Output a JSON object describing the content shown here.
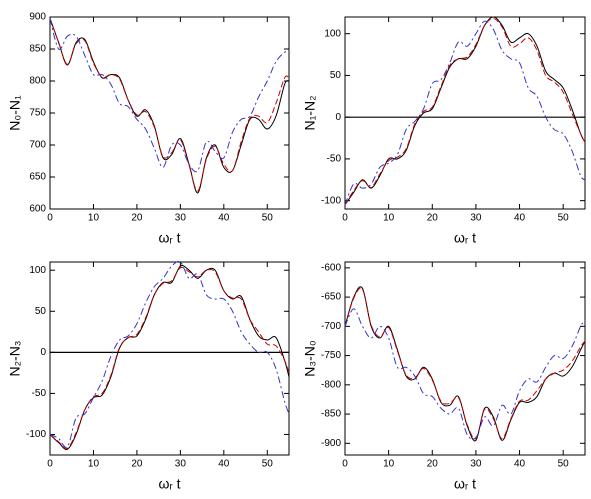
{
  "chart_data": [
    {
      "type": "line",
      "xlabel": "ωᵣ t",
      "ylabel": "N₀-N₁",
      "x": [
        0,
        2,
        4,
        6,
        8,
        10,
        12,
        14,
        16,
        18,
        20,
        22,
        24,
        26,
        28,
        30,
        32,
        34,
        36,
        38,
        40,
        42,
        44,
        46,
        48,
        50,
        52,
        54,
        55
      ],
      "xlim": [
        0,
        55
      ],
      "xticks": [
        0,
        10,
        20,
        30,
        40,
        50
      ],
      "ylim": [
        600,
        900
      ],
      "yticks": [
        600,
        650,
        700,
        750,
        800,
        850,
        900
      ],
      "series": [
        {
          "color": "#000000",
          "dash": "solid",
          "values": [
            898,
            860,
            825,
            860,
            865,
            830,
            805,
            810,
            805,
            770,
            745,
            755,
            730,
            680,
            685,
            710,
            670,
            625,
            680,
            700,
            665,
            660,
            700,
            740,
            740,
            725,
            745,
            795,
            800
          ]
        },
        {
          "color": "#cc0000",
          "dash": "dashed",
          "values": [
            898,
            860,
            826,
            858,
            863,
            828,
            806,
            810,
            803,
            770,
            747,
            752,
            728,
            682,
            688,
            708,
            668,
            628,
            678,
            698,
            670,
            660,
            705,
            742,
            745,
            735,
            765,
            805,
            805
          ]
        },
        {
          "color": "#3333cc",
          "dash": "dashdot",
          "values": [
            898,
            850,
            870,
            870,
            840,
            810,
            810,
            795,
            765,
            760,
            740,
            725,
            695,
            665,
            700,
            700,
            670,
            660,
            705,
            690,
            680,
            720,
            740,
            745,
            775,
            800,
            830,
            845,
            845
          ]
        }
      ]
    },
    {
      "type": "line",
      "xlabel": "ωᵣ t",
      "ylabel": "N₁-N₂",
      "hline": 0,
      "x": [
        0,
        2,
        4,
        6,
        8,
        10,
        12,
        14,
        16,
        18,
        20,
        22,
        24,
        26,
        28,
        30,
        32,
        34,
        36,
        38,
        40,
        42,
        44,
        46,
        48,
        50,
        52,
        54,
        55
      ],
      "xlim": [
        0,
        55
      ],
      "xticks": [
        0,
        10,
        20,
        30,
        40,
        50
      ],
      "ylim": [
        -110,
        120
      ],
      "yticks": [
        -100,
        -50,
        0,
        50,
        100
      ],
      "series": [
        {
          "color": "#000000",
          "dash": "solid",
          "values": [
            -105,
            -90,
            -75,
            -85,
            -70,
            -50,
            -50,
            -40,
            -10,
            5,
            10,
            35,
            60,
            70,
            70,
            85,
            110,
            120,
            110,
            90,
            95,
            100,
            85,
            55,
            45,
            35,
            10,
            -20,
            -30
          ]
        },
        {
          "color": "#cc0000",
          "dash": "dashed",
          "values": [
            -105,
            -88,
            -76,
            -84,
            -68,
            -52,
            -48,
            -38,
            -8,
            7,
            12,
            37,
            62,
            70,
            72,
            87,
            110,
            118,
            108,
            85,
            88,
            95,
            80,
            50,
            42,
            30,
            5,
            -20,
            -30
          ]
        },
        {
          "color": "#3333cc",
          "dash": "dashdot",
          "values": [
            -105,
            -80,
            -85,
            -80,
            -60,
            -55,
            -45,
            -15,
            -5,
            10,
            40,
            45,
            65,
            90,
            85,
            100,
            115,
            105,
            80,
            70,
            65,
            35,
            25,
            0,
            -15,
            -20,
            -40,
            -70,
            -75
          ]
        }
      ]
    },
    {
      "type": "line",
      "xlabel": "ωᵣ t",
      "ylabel": "N₂-N₃",
      "hline": 0,
      "x": [
        0,
        2,
        4,
        6,
        8,
        10,
        12,
        14,
        16,
        18,
        20,
        22,
        24,
        26,
        28,
        30,
        32,
        34,
        36,
        38,
        40,
        42,
        44,
        46,
        48,
        50,
        52,
        54,
        55
      ],
      "xlim": [
        0,
        55
      ],
      "xticks": [
        0,
        10,
        20,
        30,
        40,
        50
      ],
      "ylim": [
        -125,
        110
      ],
      "yticks": [
        -100,
        -50,
        0,
        50,
        100
      ],
      "series": [
        {
          "color": "#000000",
          "dash": "solid",
          "values": [
            -100,
            -110,
            -118,
            -100,
            -70,
            -55,
            -52,
            -30,
            5,
            18,
            20,
            40,
            70,
            85,
            85,
            105,
            100,
            90,
            100,
            100,
            75,
            65,
            68,
            40,
            20,
            15,
            18,
            -10,
            -30
          ]
        },
        {
          "color": "#cc0000",
          "dash": "dashed",
          "values": [
            -100,
            -109,
            -117,
            -98,
            -70,
            -54,
            -50,
            -28,
            6,
            18,
            22,
            42,
            70,
            84,
            87,
            103,
            98,
            92,
            100,
            98,
            75,
            66,
            65,
            40,
            25,
            10,
            8,
            -10,
            -25
          ]
        },
        {
          "color": "#3333cc",
          "dash": "dashdot",
          "values": [
            -100,
            -105,
            -115,
            -80,
            -75,
            -55,
            -35,
            -5,
            15,
            20,
            35,
            60,
            80,
            90,
            105,
            110,
            90,
            95,
            70,
            65,
            65,
            50,
            25,
            10,
            0,
            0,
            -20,
            -60,
            -75
          ]
        }
      ]
    },
    {
      "type": "line",
      "xlabel": "ωᵣ t",
      "ylabel": "N₃-N₀",
      "x": [
        0,
        2,
        4,
        6,
        8,
        10,
        12,
        14,
        16,
        18,
        20,
        22,
        24,
        26,
        28,
        30,
        32,
        34,
        36,
        38,
        40,
        42,
        44,
        46,
        48,
        50,
        52,
        54,
        55
      ],
      "xlim": [
        0,
        55
      ],
      "xticks": [
        0,
        10,
        20,
        30,
        40,
        50
      ],
      "ylim": [
        -920,
        -590
      ],
      "yticks": [
        -900,
        -850,
        -800,
        -750,
        -700,
        -650,
        -600
      ],
      "series": [
        {
          "color": "#000000",
          "dash": "solid",
          "values": [
            -700,
            -650,
            -635,
            -700,
            -720,
            -700,
            -740,
            -785,
            -790,
            -770,
            -790,
            -830,
            -835,
            -820,
            -870,
            -895,
            -840,
            -855,
            -895,
            -860,
            -830,
            -830,
            -820,
            -790,
            -780,
            -785,
            -770,
            -740,
            -725
          ]
        },
        {
          "color": "#cc0000",
          "dash": "dashed",
          "values": [
            -700,
            -652,
            -637,
            -698,
            -718,
            -702,
            -742,
            -783,
            -788,
            -772,
            -792,
            -828,
            -832,
            -822,
            -868,
            -892,
            -842,
            -858,
            -892,
            -858,
            -828,
            -826,
            -810,
            -790,
            -780,
            -775,
            -760,
            -735,
            -725
          ]
        },
        {
          "color": "#3333cc",
          "dash": "dashdot",
          "values": [
            -700,
            -670,
            -700,
            -720,
            -700,
            -720,
            -770,
            -770,
            -785,
            -815,
            -820,
            -840,
            -850,
            -840,
            -885,
            -890,
            -855,
            -870,
            -835,
            -850,
            -810,
            -790,
            -795,
            -770,
            -750,
            -755,
            -735,
            -700,
            -690
          ]
        }
      ]
    }
  ]
}
